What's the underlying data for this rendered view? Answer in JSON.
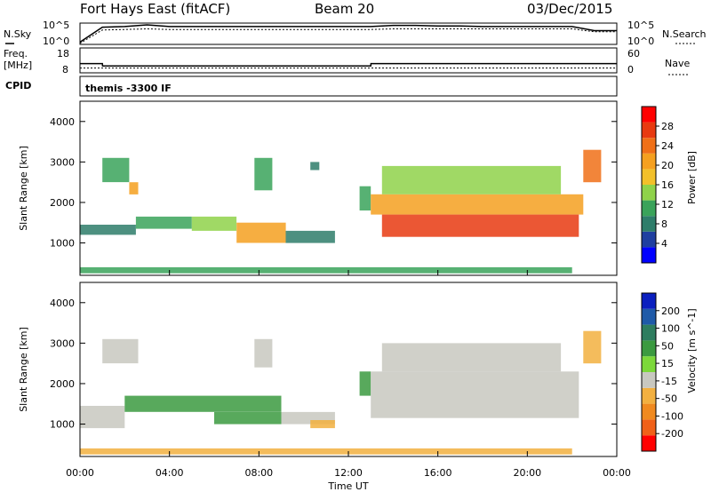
{
  "header": {
    "radar": "Fort Hays East (fitACF)",
    "beam": "Beam 20",
    "date": "03/Dec/2015"
  },
  "side_labels": {
    "nsky": "N.Sky",
    "freq_line1": "Freq.",
    "freq_line2": "[MHz]",
    "cpid": "CPID",
    "nsearch": "N.Search",
    "nave": "Nave"
  },
  "program": "themis -3300 IF",
  "colors": {
    "power_scale": [
      "#0000ff",
      "#1f3fa0",
      "#2e7d6a",
      "#3aa35a",
      "#8fd24a",
      "#f2c02a",
      "#f5a020",
      "#f07018",
      "#e83a10",
      "#ff0000"
    ],
    "velocity_scale": [
      "#0a1fbf",
      "#1f5aa8",
      "#2e7d5f",
      "#3b9a40",
      "#7cd83a",
      "#c8c8c0",
      "#f2b040",
      "#f08a20",
      "#f06018",
      "#ff0000"
    ]
  },
  "chart_data": [
    {
      "type": "line",
      "panel": "noise",
      "y_left_label": "N.Sky",
      "y_right_label": "N.Search",
      "y_left_ticks": [
        "10^5",
        "10^0"
      ],
      "y_right_ticks": [
        "10^5",
        "10^0"
      ],
      "x": [
        0,
        1,
        2,
        3,
        4,
        5,
        6,
        7,
        8,
        9,
        10,
        11,
        12,
        13,
        14,
        15,
        16,
        17,
        18,
        19,
        20,
        21,
        22,
        23,
        24
      ],
      "series": [
        {
          "values": [
            4,
            30,
            31,
            34,
            31,
            31,
            31,
            31,
            31,
            31,
            31,
            31,
            31,
            31,
            33,
            33,
            32,
            32,
            31,
            31,
            31,
            31,
            31,
            24,
            24
          ]
        },
        {
          "values": [
            2,
            25,
            26,
            27,
            26,
            26,
            26,
            26,
            26,
            26,
            26,
            26,
            26,
            26,
            27,
            27,
            27,
            27,
            27,
            27,
            27,
            27,
            27,
            22,
            22
          ]
        }
      ]
    },
    {
      "type": "line",
      "panel": "frequency",
      "y_left_label": "Freq. [MHz]",
      "y_right_label": "Nave",
      "y_left_ticks": [
        "18",
        "8"
      ],
      "y_right_ticks": [
        "60",
        "0"
      ],
      "x": [
        0,
        1,
        1.01,
        13,
        13.01,
        24
      ],
      "series": [
        {
          "values": [
            11.5,
            11.5,
            10.4,
            10.4,
            11.5,
            11.5
          ]
        },
        {
          "values": [
            9.4,
            9.4,
            9.4,
            9.4,
            9.4,
            9.4
          ]
        }
      ]
    },
    {
      "type": "heatmap",
      "panel": "power",
      "ylabel": "Slant Range [km]",
      "ylim": [
        200,
        4500
      ],
      "y_ticks": [
        "1000",
        "2000",
        "3000",
        "4000"
      ],
      "colorbar_label": "Power [dB]",
      "colorbar_ticks": [
        "4",
        "8",
        "12",
        "16",
        "20",
        "24",
        "28"
      ],
      "regions": [
        {
          "x0": 0.0,
          "x1": 2.5,
          "y0": 1200,
          "y1": 1450,
          "v": 8
        },
        {
          "x0": 2.5,
          "x1": 5.0,
          "y0": 1350,
          "y1": 1650,
          "v": 12
        },
        {
          "x0": 5.0,
          "x1": 7.0,
          "y0": 1300,
          "y1": 1650,
          "v": 14
        },
        {
          "x0": 7.0,
          "x1": 9.2,
          "y0": 1000,
          "y1": 1500,
          "v": 20
        },
        {
          "x0": 9.2,
          "x1": 11.4,
          "y0": 1000,
          "y1": 1300,
          "v": 8
        },
        {
          "x0": 1.0,
          "x1": 2.2,
          "y0": 2500,
          "y1": 3100,
          "v": 10
        },
        {
          "x0": 2.2,
          "x1": 2.6,
          "y0": 2200,
          "y1": 2500,
          "v": 20
        },
        {
          "x0": 7.8,
          "x1": 8.6,
          "y0": 2300,
          "y1": 3100,
          "v": 12
        },
        {
          "x0": 10.3,
          "x1": 10.7,
          "y0": 2800,
          "y1": 3000,
          "v": 8
        },
        {
          "x0": 12.5,
          "x1": 13.0,
          "y0": 1800,
          "y1": 2400,
          "v": 12
        },
        {
          "x0": 13.0,
          "x1": 22.5,
          "y0": 1700,
          "y1": 2200,
          "v": 22
        },
        {
          "x0": 13.5,
          "x1": 22.3,
          "y0": 1150,
          "y1": 1700,
          "v": 27
        },
        {
          "x0": 13.5,
          "x1": 21.5,
          "y0": 2200,
          "y1": 2900,
          "v": 14
        },
        {
          "x0": 22.5,
          "x1": 23.3,
          "y0": 2500,
          "y1": 3300,
          "v": 24
        },
        {
          "x0": 0.0,
          "x1": 22.0,
          "y0": 250,
          "y1": 400,
          "v": 10
        }
      ]
    },
    {
      "type": "heatmap",
      "panel": "velocity",
      "ylabel": "Slant Range [km]",
      "ylim": [
        200,
        4500
      ],
      "y_ticks": [
        "1000",
        "2000",
        "3000",
        "4000"
      ],
      "colorbar_label": "Velocity [m s^-1]",
      "colorbar_ticks": [
        "200",
        "100",
        "50",
        "15",
        "-15",
        "-50",
        "-100",
        "-200"
      ],
      "regions": [
        {
          "x0": 0.0,
          "x1": 2.0,
          "y0": 900,
          "y1": 1450,
          "v": 0
        },
        {
          "x0": 2.0,
          "x1": 9.0,
          "y0": 1300,
          "y1": 1700,
          "v": 30
        },
        {
          "x0": 6.0,
          "x1": 9.0,
          "y0": 1000,
          "y1": 1300,
          "v": 30
        },
        {
          "x0": 9.0,
          "x1": 11.4,
          "y0": 1000,
          "y1": 1300,
          "v": 0
        },
        {
          "x0": 10.3,
          "x1": 11.4,
          "y0": 900,
          "y1": 1100,
          "v": -40
        },
        {
          "x0": 1.0,
          "x1": 2.6,
          "y0": 2500,
          "y1": 3100,
          "v": 0
        },
        {
          "x0": 7.8,
          "x1": 8.6,
          "y0": 2400,
          "y1": 3100,
          "v": 0
        },
        {
          "x0": 12.5,
          "x1": 13.0,
          "y0": 1700,
          "y1": 2300,
          "v": 30
        },
        {
          "x0": 13.0,
          "x1": 22.3,
          "y0": 1150,
          "y1": 2300,
          "v": 0
        },
        {
          "x0": 13.5,
          "x1": 21.5,
          "y0": 2300,
          "y1": 3000,
          "v": 0
        },
        {
          "x0": 22.5,
          "x1": 23.3,
          "y0": 2500,
          "y1": 3300,
          "v": -40
        },
        {
          "x0": 0.0,
          "x1": 22.0,
          "y0": 250,
          "y1": 400,
          "v": -30
        }
      ]
    }
  ],
  "x_axis": {
    "label": "Time UT",
    "ticks": [
      "00:00",
      "04:00",
      "08:00",
      "12:00",
      "16:00",
      "20:00",
      "00:00"
    ]
  }
}
